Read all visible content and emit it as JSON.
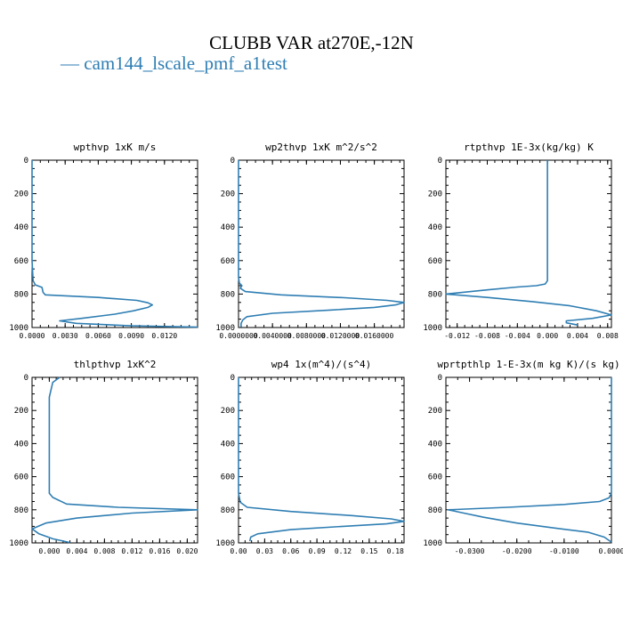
{
  "figure": {
    "title": "CLUBB VAR at270E,-12N",
    "legend_label": "cam144_lscale_pmf_a1test",
    "legend_dash": "—",
    "line_color": "#2f7eb3"
  },
  "chart_data": [
    {
      "type": "line",
      "title": "wpthvp  1xK m/s",
      "xlim": [
        0,
        0.015
      ],
      "ylim": [
        1000,
        0
      ],
      "x_ticks": [
        0,
        0.003,
        0.006,
        0.009,
        0.012
      ],
      "x_tick_labels": [
        "0.0000",
        "0.0030",
        "0.0060",
        "0.0090",
        "0.0120"
      ],
      "y_ticks": [
        0,
        200,
        400,
        600,
        800,
        1000
      ],
      "y_tick_labels": [
        "0",
        "200",
        "400",
        "600",
        "800",
        "1000"
      ],
      "series": [
        {
          "x": [
            0,
            0,
            0,
            0,
            0.0001,
            0.0003,
            0.0009,
            0.001,
            0.0012,
            0.006,
            0.0095,
            0.0105,
            0.0109,
            0.0105,
            0.0092,
            0.0075,
            0.0045,
            0.0025,
            0.004,
            0.009,
            0.015
          ],
          "y": [
            0,
            200,
            400,
            600,
            720,
            745,
            760,
            790,
            805,
            820,
            838,
            852,
            865,
            880,
            900,
            920,
            945,
            960,
            975,
            990,
            998
          ]
        }
      ]
    },
    {
      "type": "line",
      "title": "wp2thvp  1xK m^2/s^2",
      "xlim": [
        0,
        0.0195
      ],
      "ylim": [
        1000,
        0
      ],
      "x_ticks": [
        0,
        0.004,
        0.008,
        0.012,
        0.016
      ],
      "x_tick_labels": [
        "0.0000000",
        "0.0040000",
        "0.0080000",
        "0.0120000",
        "0.0160000"
      ],
      "y_ticks": [
        0,
        200,
        400,
        600,
        800,
        1000
      ],
      "y_tick_labels": [
        "0",
        "200",
        "400",
        "600",
        "800",
        "1000"
      ],
      "series": [
        {
          "x": [
            0,
            0,
            0,
            0.0001,
            0.0004,
            0.0002,
            0.0008,
            0.005,
            0.0125,
            0.0175,
            0.0195,
            0.0185,
            0.016,
            0.011,
            0.004,
            0.001,
            0.0005,
            0.0003,
            0.0003
          ],
          "y": [
            0,
            400,
            700,
            735,
            750,
            765,
            785,
            805,
            822,
            838,
            850,
            865,
            880,
            895,
            915,
            935,
            955,
            975,
            998
          ]
        }
      ]
    },
    {
      "type": "line",
      "title": "rtpthvp  1E-3x(kg/kg) K",
      "xlim": [
        -0.0135,
        0.0085
      ],
      "ylim": [
        1000,
        0
      ],
      "x_ticks": [
        -0.012,
        -0.008,
        -0.004,
        0,
        0.004,
        0.008
      ],
      "x_tick_labels": [
        "-0.012",
        "-0.008",
        "-0.004",
        "0.000",
        "0.004",
        "0.008"
      ],
      "y_ticks": [
        0,
        200,
        400,
        600,
        800,
        1000
      ],
      "y_tick_labels": [
        "0",
        "200",
        "400",
        "600",
        "800",
        "1000"
      ],
      "series": [
        {
          "x": [
            0,
            0,
            0,
            -0.0003,
            -0.0015,
            -0.004,
            -0.008,
            -0.0135,
            -0.008,
            -0.002,
            0.003,
            0.0065,
            0.0085,
            0.006,
            0.0025,
            0.0025,
            0.004
          ],
          "y": [
            0,
            400,
            720,
            740,
            750,
            758,
            775,
            800,
            820,
            845,
            870,
            900,
            925,
            945,
            960,
            972,
            985
          ]
        }
      ]
    },
    {
      "type": "line",
      "title": "thlpthvp  1xK^2",
      "xlim": [
        -0.0025,
        0.0215
      ],
      "ylim": [
        1000,
        0
      ],
      "x_ticks": [
        0,
        0.004,
        0.008,
        0.012,
        0.016,
        0.02
      ],
      "x_tick_labels": [
        "0.000",
        "0.004",
        "0.008",
        "0.012",
        "0.016",
        "0.020"
      ],
      "y_ticks": [
        0,
        200,
        400,
        600,
        800,
        1000
      ],
      "y_tick_labels": [
        "0",
        "200",
        "400",
        "600",
        "800",
        "1000"
      ],
      "series": [
        {
          "x": [
            0.0015,
            0.0005,
            0,
            0,
            0,
            0,
            0.0005,
            0.0025,
            0.01,
            0.0215,
            0.012,
            0.004,
            -0.0005,
            -0.0025,
            -0.0015,
            0.0005,
            0.003
          ],
          "y": [
            0,
            30,
            120,
            400,
            600,
            700,
            725,
            765,
            785,
            800,
            820,
            850,
            880,
            915,
            945,
            975,
            998
          ]
        }
      ]
    },
    {
      "type": "line",
      "title": "wp4  1x(m^4)/(s^4)",
      "xlim": [
        0,
        0.19
      ],
      "ylim": [
        1000,
        0
      ],
      "x_ticks": [
        0,
        0.03,
        0.06,
        0.09,
        0.12,
        0.15,
        0.18
      ],
      "x_tick_labels": [
        "0.00",
        "0.03",
        "0.06",
        "0.09",
        "0.12",
        "0.15",
        "0.18"
      ],
      "y_ticks": [
        0,
        200,
        400,
        600,
        800,
        1000
      ],
      "y_tick_labels": [
        "0",
        "200",
        "400",
        "600",
        "800",
        "1000"
      ],
      "series": [
        {
          "x": [
            0,
            0,
            0,
            0.002,
            0.01,
            0.06,
            0.13,
            0.175,
            0.19,
            0.17,
            0.12,
            0.06,
            0.022,
            0.014,
            0.013
          ],
          "y": [
            0,
            400,
            700,
            755,
            785,
            810,
            835,
            855,
            870,
            885,
            900,
            920,
            945,
            965,
            990
          ]
        }
      ]
    },
    {
      "type": "line",
      "title": "wprtpthlp  1-E-3x(m kg K)/(s kg)",
      "xlim": [
        -0.035,
        0
      ],
      "ylim": [
        1000,
        0
      ],
      "x_ticks": [
        -0.03,
        -0.02,
        -0.01,
        0
      ],
      "x_tick_labels": [
        "-0.0300",
        "-0.0200",
        "-0.0100",
        "0.0000"
      ],
      "y_ticks": [
        0,
        200,
        400,
        600,
        800,
        1000
      ],
      "y_tick_labels": [
        "0",
        "200",
        "400",
        "600",
        "800",
        "1000"
      ],
      "series": [
        {
          "x": [
            0,
            0,
            0,
            -0.0005,
            -0.0025,
            -0.01,
            -0.022,
            -0.0345,
            -0.032,
            -0.027,
            -0.02,
            -0.012,
            -0.005,
            -0.0015,
            0
          ],
          "y": [
            0,
            400,
            700,
            728,
            750,
            768,
            785,
            800,
            815,
            845,
            880,
            910,
            935,
            965,
            995
          ]
        }
      ]
    }
  ]
}
